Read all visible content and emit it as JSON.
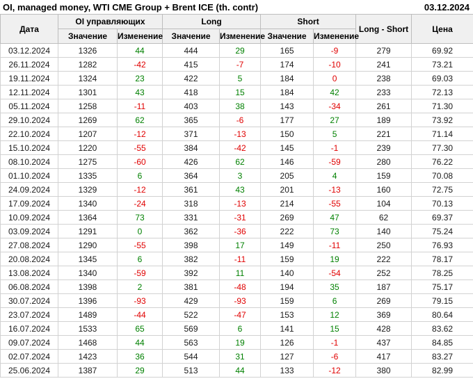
{
  "header": {
    "title": "OI, managed money, WTI CME Group + Brent ICE (th. contr)",
    "as_of_date": "03.12.2024"
  },
  "chart_data": {
    "type": "table",
    "title": "OI, managed money, WTI CME Group + Brent ICE (th. contr)",
    "as_of_date": "03.12.2024",
    "column_groups": {
      "date": "Дата",
      "oi": "OI управляющих",
      "long": "Long",
      "short": "Short",
      "long_short": "Long - Short",
      "price": "Цена"
    },
    "sub_columns": {
      "value": "Значение",
      "change": "Изменение"
    },
    "colors": {
      "positive": "#008000",
      "negative": "#e00000",
      "header_bg": "#f0f0f0",
      "grid": "#d2d2d2"
    },
    "rows": [
      [
        "03.12.2024",
        "1326",
        "44",
        "pos",
        "444",
        "29",
        "pos",
        "165",
        "-9",
        "neg",
        "279",
        "69.92"
      ],
      [
        "26.11.2024",
        "1282",
        "-42",
        "neg",
        "415",
        "-7",
        "neg",
        "174",
        "-10",
        "neg",
        "241",
        "73.21"
      ],
      [
        "19.11.2024",
        "1324",
        "23",
        "pos",
        "422",
        "5",
        "pos",
        "184",
        "0",
        "neg",
        "238",
        "69.03"
      ],
      [
        "12.11.2024",
        "1301",
        "43",
        "pos",
        "418",
        "15",
        "pos",
        "184",
        "42",
        "pos",
        "233",
        "72.13"
      ],
      [
        "05.11.2024",
        "1258",
        "-11",
        "neg",
        "403",
        "38",
        "pos",
        "143",
        "-34",
        "neg",
        "261",
        "71.30"
      ],
      [
        "29.10.2024",
        "1269",
        "62",
        "pos",
        "365",
        "-6",
        "neg",
        "177",
        "27",
        "pos",
        "189",
        "73.92"
      ],
      [
        "22.10.2024",
        "1207",
        "-12",
        "neg",
        "371",
        "-13",
        "neg",
        "150",
        "5",
        "pos",
        "221",
        "71.14"
      ],
      [
        "15.10.2024",
        "1220",
        "-55",
        "neg",
        "384",
        "-42",
        "neg",
        "145",
        "-1",
        "neg",
        "239",
        "77.30"
      ],
      [
        "08.10.2024",
        "1275",
        "-60",
        "neg",
        "426",
        "62",
        "pos",
        "146",
        "-59",
        "neg",
        "280",
        "76.22"
      ],
      [
        "01.10.2024",
        "1335",
        "6",
        "pos",
        "364",
        "3",
        "pos",
        "205",
        "4",
        "pos",
        "159",
        "70.08"
      ],
      [
        "24.09.2024",
        "1329",
        "-12",
        "neg",
        "361",
        "43",
        "pos",
        "201",
        "-13",
        "neg",
        "160",
        "72.75"
      ],
      [
        "17.09.2024",
        "1340",
        "-24",
        "neg",
        "318",
        "-13",
        "neg",
        "214",
        "-55",
        "neg",
        "104",
        "70.13"
      ],
      [
        "10.09.2024",
        "1364",
        "73",
        "pos",
        "331",
        "-31",
        "neg",
        "269",
        "47",
        "pos",
        "62",
        "69.37"
      ],
      [
        "03.09.2024",
        "1291",
        "0",
        "pos",
        "362",
        "-36",
        "neg",
        "222",
        "73",
        "pos",
        "140",
        "75.24"
      ],
      [
        "27.08.2024",
        "1290",
        "-55",
        "neg",
        "398",
        "17",
        "pos",
        "149",
        "-11",
        "neg",
        "250",
        "76.93"
      ],
      [
        "20.08.2024",
        "1345",
        "6",
        "pos",
        "382",
        "-11",
        "neg",
        "159",
        "19",
        "pos",
        "222",
        "78.17"
      ],
      [
        "13.08.2024",
        "1340",
        "-59",
        "neg",
        "392",
        "11",
        "pos",
        "140",
        "-54",
        "neg",
        "252",
        "78.25"
      ],
      [
        "06.08.2024",
        "1398",
        "2",
        "pos",
        "381",
        "-48",
        "neg",
        "194",
        "35",
        "pos",
        "187",
        "75.17"
      ],
      [
        "30.07.2024",
        "1396",
        "-93",
        "neg",
        "429",
        "-93",
        "neg",
        "159",
        "6",
        "pos",
        "269",
        "79.15"
      ],
      [
        "23.07.2024",
        "1489",
        "-44",
        "neg",
        "522",
        "-47",
        "neg",
        "153",
        "12",
        "pos",
        "369",
        "80.64"
      ],
      [
        "16.07.2024",
        "1533",
        "65",
        "pos",
        "569",
        "6",
        "pos",
        "141",
        "15",
        "pos",
        "428",
        "83.62"
      ],
      [
        "09.07.2024",
        "1468",
        "44",
        "pos",
        "563",
        "19",
        "pos",
        "126",
        "-1",
        "neg",
        "437",
        "84.85"
      ],
      [
        "02.07.2024",
        "1423",
        "36",
        "pos",
        "544",
        "31",
        "pos",
        "127",
        "-6",
        "neg",
        "417",
        "83.27"
      ],
      [
        "25.06.2024",
        "1387",
        "29",
        "pos",
        "513",
        "44",
        "pos",
        "133",
        "-12",
        "neg",
        "380",
        "82.99"
      ]
    ]
  }
}
